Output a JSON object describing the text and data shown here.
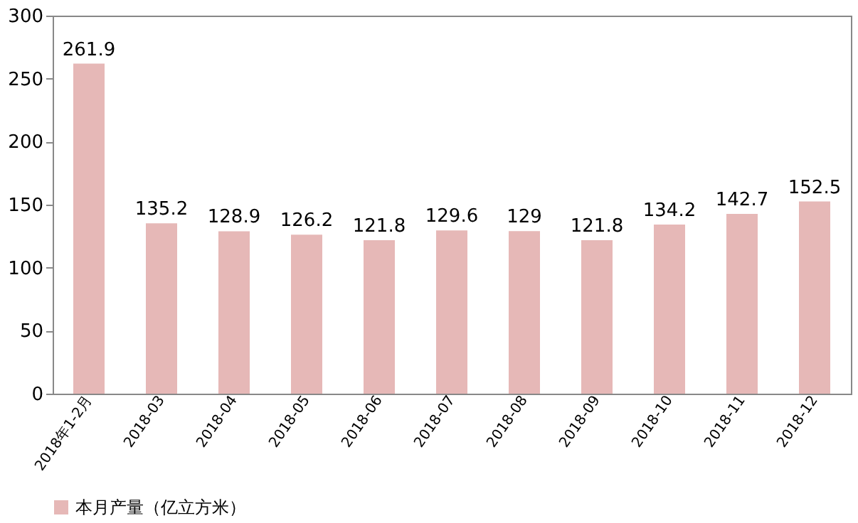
{
  "chart_data": {
    "type": "bar",
    "categories": [
      "2018年1-2月",
      "2018-03",
      "2018-04",
      "2018-05",
      "2018-06",
      "2018-07",
      "2018-08",
      "2018-09",
      "2018-10",
      "2018-11",
      "2018-12"
    ],
    "series": [
      {
        "name": "本月产量（亿立方米）",
        "color": "#e6b8b7",
        "values": [
          261.9,
          135.2,
          128.9,
          126.2,
          121.8,
          129.6,
          129,
          121.8,
          134.2,
          142.7,
          152.5
        ]
      }
    ],
    "ylim": [
      0,
      300
    ],
    "yticks": [
      0,
      50,
      100,
      150,
      200,
      250,
      300
    ],
    "data_labels": true,
    "grid": false,
    "legend": "bottom"
  }
}
